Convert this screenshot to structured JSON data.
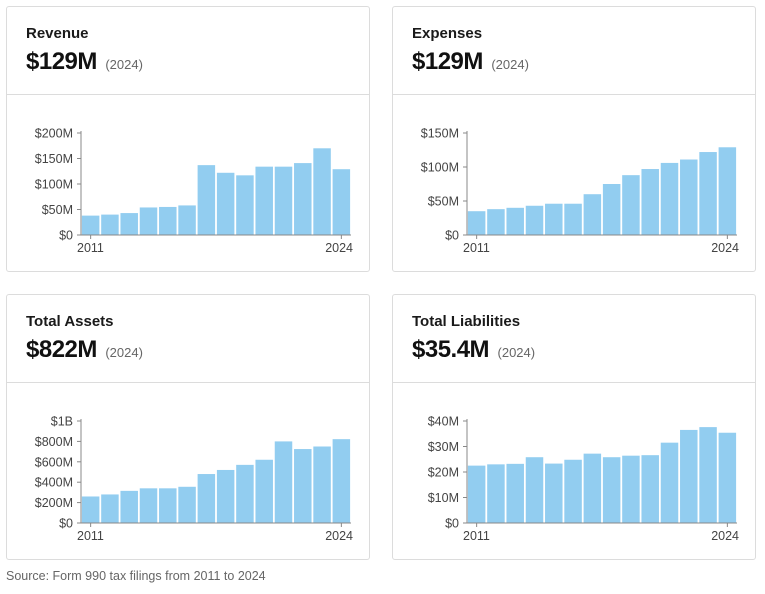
{
  "source_note": "Source: Form 990 tax filings from 2011 to 2024",
  "bar_color": "#92cdf0",
  "chart_data": [
    {
      "type": "bar",
      "title": "Revenue",
      "headline": "$129M",
      "headline_year": "(2024)",
      "x_start_label": "2011",
      "x_end_label": "2024",
      "categories": [
        "2011",
        "2012",
        "2013",
        "2014",
        "2015",
        "2016",
        "2017",
        "2018",
        "2019",
        "2020",
        "2021",
        "2022",
        "2023",
        "2024"
      ],
      "values": [
        38,
        40,
        43,
        54,
        55,
        58,
        137,
        122,
        117,
        134,
        134,
        141,
        170,
        129
      ],
      "ylim": [
        0,
        200
      ],
      "yticks": [
        0,
        50,
        100,
        150,
        200
      ],
      "ytick_labels": [
        "$0",
        "$50M",
        "$100M",
        "$150M",
        "$200M"
      ]
    },
    {
      "type": "bar",
      "title": "Expenses",
      "headline": "$129M",
      "headline_year": "(2024)",
      "x_start_label": "2011",
      "x_end_label": "2024",
      "categories": [
        "2011",
        "2012",
        "2013",
        "2014",
        "2015",
        "2016",
        "2017",
        "2018",
        "2019",
        "2020",
        "2021",
        "2022",
        "2023",
        "2024"
      ],
      "values": [
        35,
        38,
        40,
        43,
        46,
        46,
        60,
        75,
        88,
        97,
        106,
        111,
        122,
        129
      ],
      "ylim": [
        0,
        150
      ],
      "yticks": [
        0,
        50,
        100,
        150
      ],
      "ytick_labels": [
        "$0",
        "$50M",
        "$100M",
        "$150M"
      ]
    },
    {
      "type": "bar",
      "title": "Total Assets",
      "headline": "$822M",
      "headline_year": "(2024)",
      "x_start_label": "2011",
      "x_end_label": "2024",
      "categories": [
        "2011",
        "2012",
        "2013",
        "2014",
        "2015",
        "2016",
        "2017",
        "2018",
        "2019",
        "2020",
        "2021",
        "2022",
        "2023",
        "2024"
      ],
      "values": [
        260,
        280,
        315,
        340,
        340,
        355,
        480,
        520,
        570,
        620,
        800,
        725,
        750,
        822
      ],
      "ylim": [
        0,
        1000
      ],
      "yticks": [
        0,
        200,
        400,
        600,
        800,
        1000
      ],
      "ytick_labels": [
        "$0",
        "$200M",
        "$400M",
        "$600M",
        "$800M",
        "$1B"
      ]
    },
    {
      "type": "bar",
      "title": "Total Liabilities",
      "headline": "$35.4M",
      "headline_year": "(2024)",
      "x_start_label": "2011",
      "x_end_label": "2024",
      "categories": [
        "2011",
        "2012",
        "2013",
        "2014",
        "2015",
        "2016",
        "2017",
        "2018",
        "2019",
        "2020",
        "2021",
        "2022",
        "2023",
        "2024"
      ],
      "values": [
        22.5,
        23,
        23.2,
        25.8,
        23.3,
        24.8,
        27.2,
        25.8,
        26.4,
        26.6,
        31.5,
        36.5,
        37.6,
        35.4
      ],
      "ylim": [
        0,
        40
      ],
      "yticks": [
        0,
        10,
        20,
        30,
        40
      ],
      "ytick_labels": [
        "$0",
        "$10M",
        "$20M",
        "$30M",
        "$40M"
      ]
    }
  ]
}
